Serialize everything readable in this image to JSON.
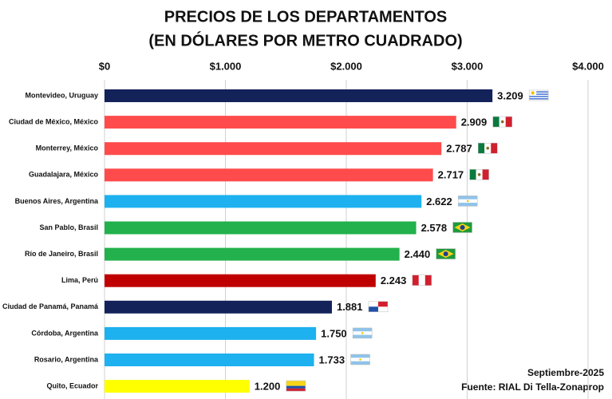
{
  "chart_data": {
    "type": "bar",
    "orientation": "horizontal",
    "title": [
      "PRECIOS DE LOS DEPARTAMENTOS",
      "(EN DÓLARES POR METRO CUADRADO)"
    ],
    "categories": [
      "Montevideo, Uruguay",
      "Ciudad de México, México",
      "Monterrey, México",
      "Guadalajara, México",
      "Buenos Aires, Argentina",
      "San Pablo, Brasil",
      "Río de Janeiro, Brasil",
      "Lima, Perú",
      "Ciudad de Panamá, Panamá",
      "Córdoba, Argentina",
      "Rosario, Argentina",
      "Quito, Ecuador"
    ],
    "values": [
      3209,
      2909,
      2787,
      2717,
      2622,
      2578,
      2440,
      2243,
      1881,
      1750,
      1733,
      1200
    ],
    "value_labels": [
      "3.209",
      "2.909",
      "2.787",
      "2.717",
      "2.622",
      "2.578",
      "2.440",
      "2.243",
      "1.881",
      "1.750",
      "1.733",
      "1.200"
    ],
    "colors": [
      "#14225a",
      "#ff4b4b",
      "#ff4b4b",
      "#ff4b4b",
      "#1eb1ef",
      "#22b14c",
      "#22b14c",
      "#c00000",
      "#14225a",
      "#1eb1ef",
      "#1eb1ef",
      "#ffff00"
    ],
    "xlim": [
      0,
      4000
    ],
    "xticks": [
      {
        "value": 0,
        "label": "$0"
      },
      {
        "value": 1000,
        "label": "$1.000"
      },
      {
        "value": 2000,
        "label": "$2.000"
      },
      {
        "value": 3000,
        "label": "$3.000"
      },
      {
        "value": 4000,
        "label": "$4.000"
      }
    ],
    "grid": true,
    "notes": [
      "Septiembre-2025",
      "Fuente: RIAL Di Tella-Zonaprop"
    ]
  }
}
